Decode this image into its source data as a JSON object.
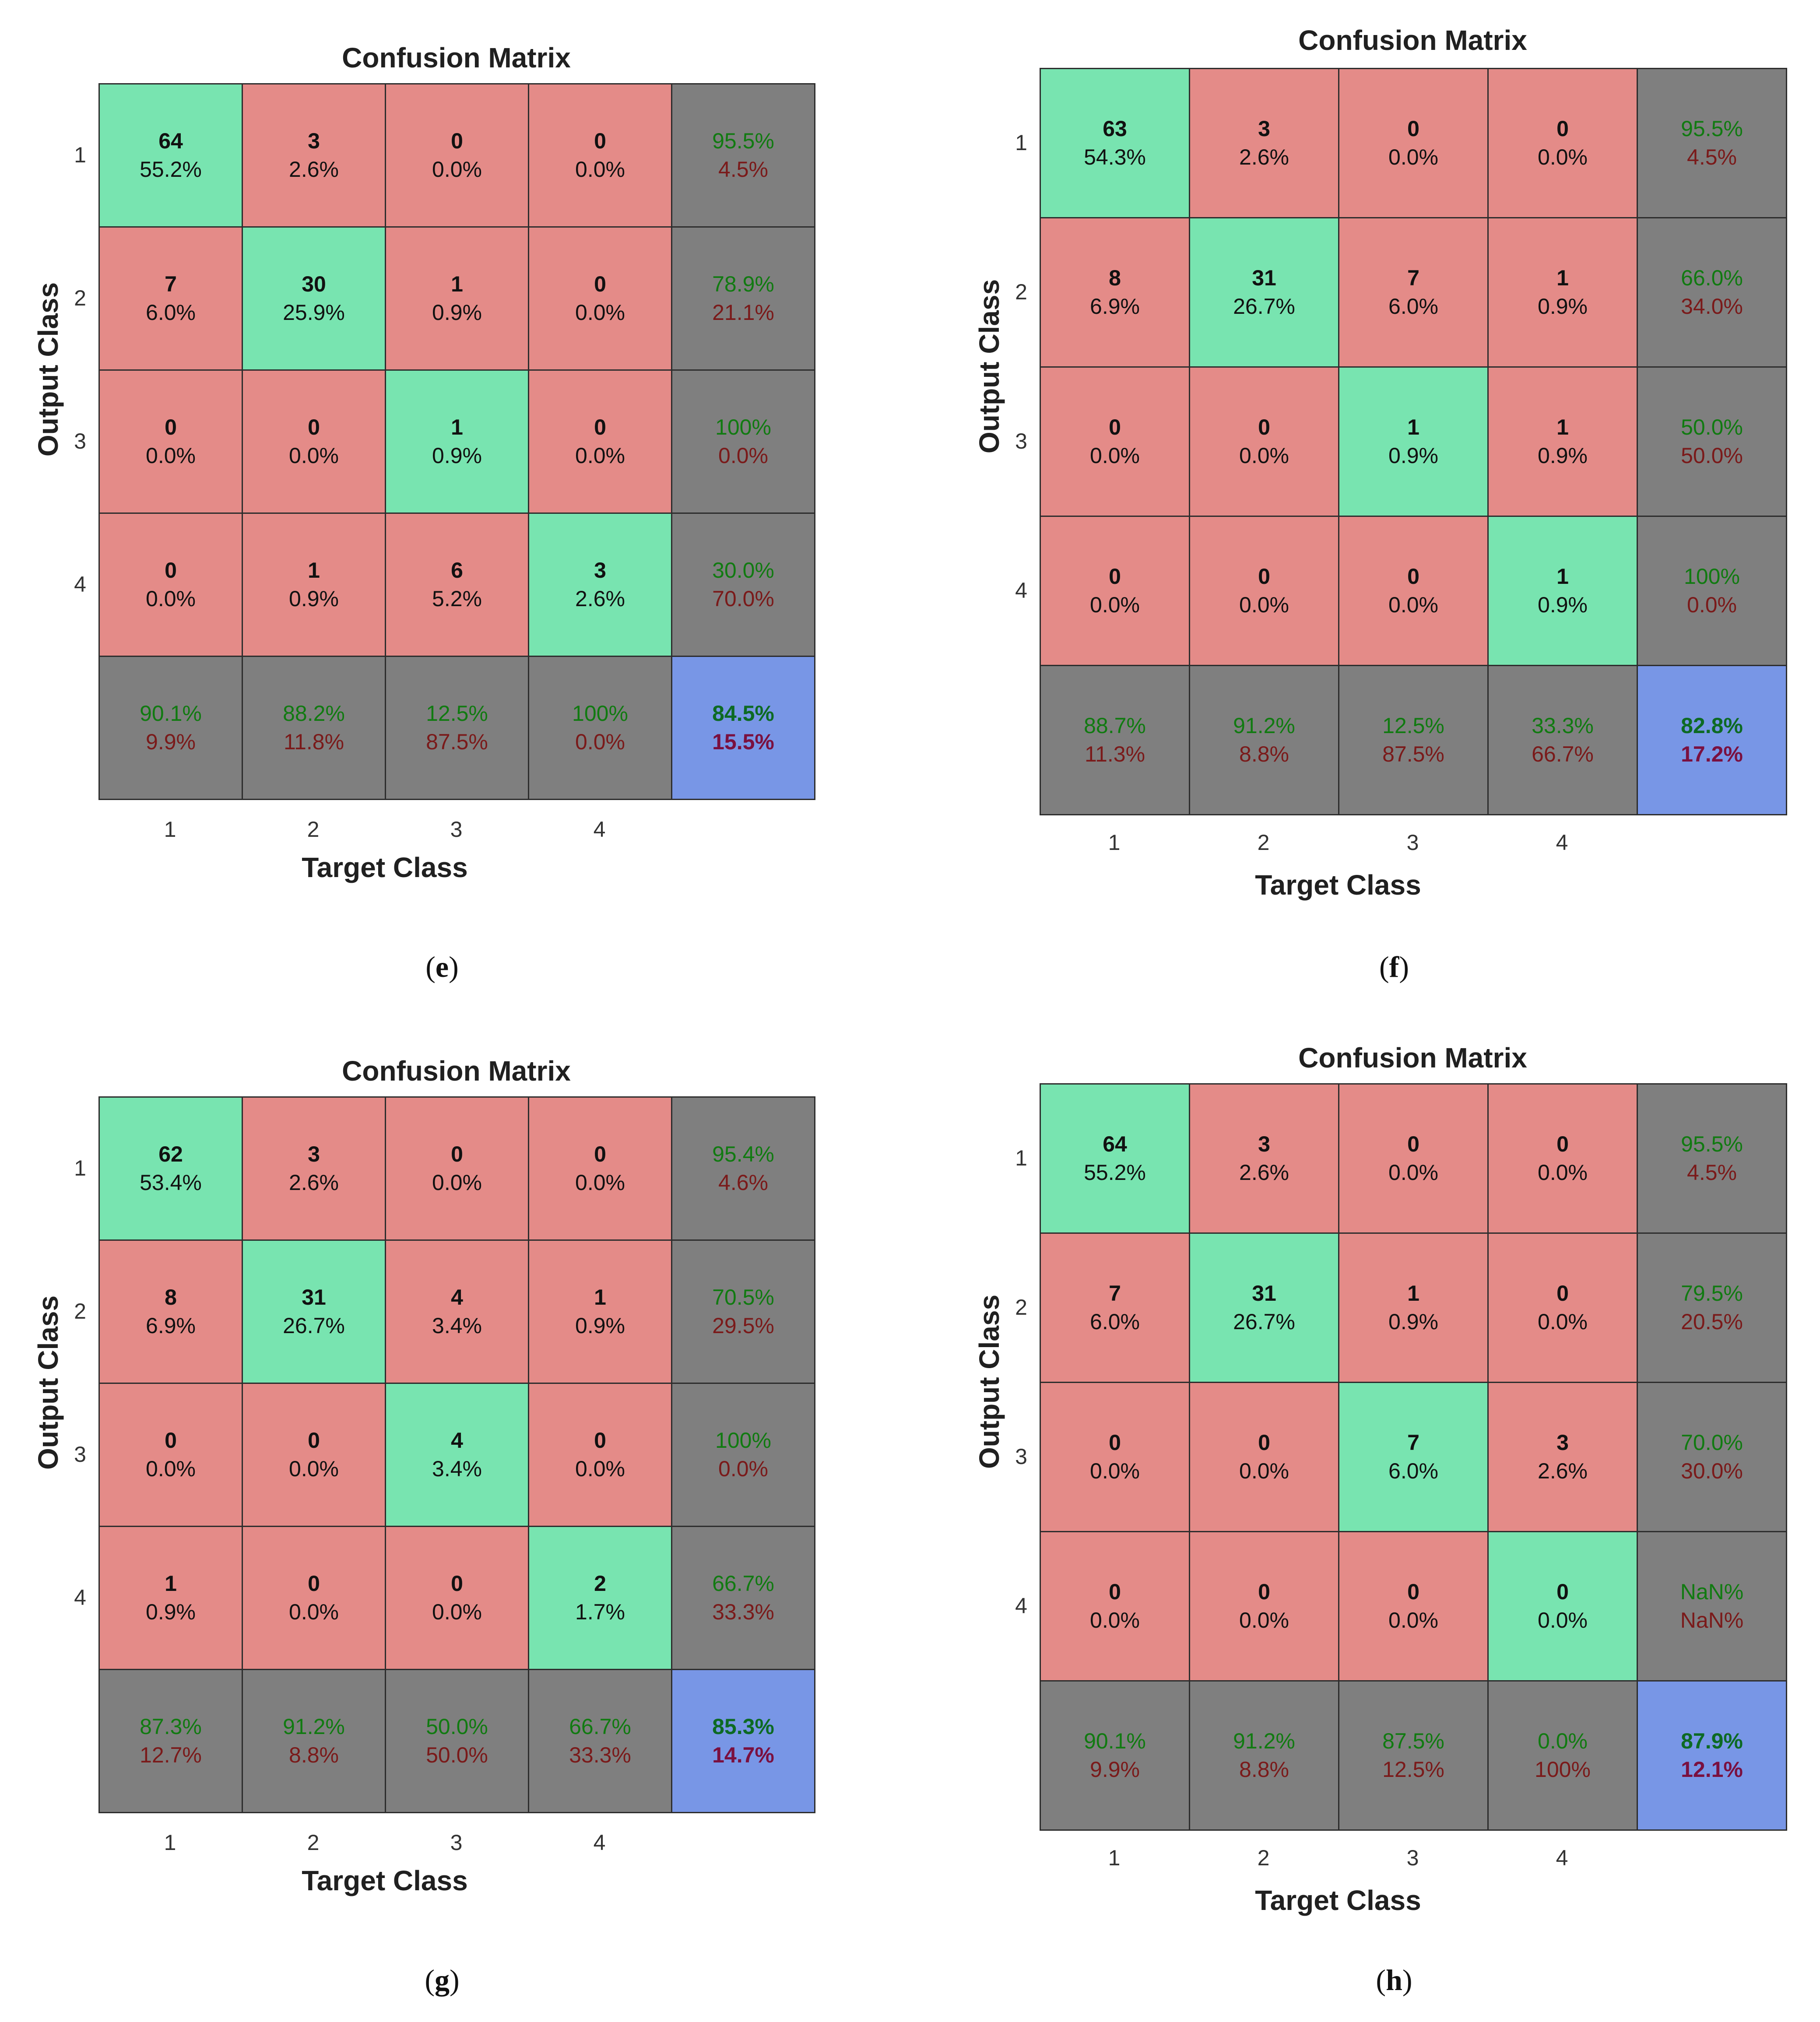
{
  "chart_data": [
    {
      "type": "table",
      "panel": "e",
      "title": "Confusion Matrix",
      "xlabel": "Target Class",
      "ylabel": "Output Class",
      "x_ticks": [
        "1",
        "2",
        "3",
        "4"
      ],
      "y_ticks": [
        "1",
        "2",
        "3",
        "4"
      ],
      "rows": [
        [
          {
            "count": "64",
            "pct": "55.2%"
          },
          {
            "count": "3",
            "pct": "2.6%"
          },
          {
            "count": "0",
            "pct": "0.0%"
          },
          {
            "count": "0",
            "pct": "0.0%"
          },
          {
            "good": "95.5%",
            "bad": "4.5%"
          }
        ],
        [
          {
            "count": "7",
            "pct": "6.0%"
          },
          {
            "count": "30",
            "pct": "25.9%"
          },
          {
            "count": "1",
            "pct": "0.9%"
          },
          {
            "count": "0",
            "pct": "0.0%"
          },
          {
            "good": "78.9%",
            "bad": "21.1%"
          }
        ],
        [
          {
            "count": "0",
            "pct": "0.0%"
          },
          {
            "count": "0",
            "pct": "0.0%"
          },
          {
            "count": "1",
            "pct": "0.9%"
          },
          {
            "count": "0",
            "pct": "0.0%"
          },
          {
            "good": "100%",
            "bad": "0.0%"
          }
        ],
        [
          {
            "count": "0",
            "pct": "0.0%"
          },
          {
            "count": "1",
            "pct": "0.9%"
          },
          {
            "count": "6",
            "pct": "5.2%"
          },
          {
            "count": "3",
            "pct": "2.6%"
          },
          {
            "good": "30.0%",
            "bad": "70.0%"
          }
        ]
      ],
      "column_summary": [
        {
          "good": "90.1%",
          "bad": "9.9%"
        },
        {
          "good": "88.2%",
          "bad": "11.8%"
        },
        {
          "good": "12.5%",
          "bad": "87.5%"
        },
        {
          "good": "100%",
          "bad": "0.0%"
        }
      ],
      "overall": {
        "good": "84.5%",
        "bad": "15.5%"
      }
    },
    {
      "type": "table",
      "panel": "f",
      "title": "Confusion Matrix",
      "xlabel": "Target Class",
      "ylabel": "Output Class",
      "x_ticks": [
        "1",
        "2",
        "3",
        "4"
      ],
      "y_ticks": [
        "1",
        "2",
        "3",
        "4"
      ],
      "rows": [
        [
          {
            "count": "63",
            "pct": "54.3%"
          },
          {
            "count": "3",
            "pct": "2.6%"
          },
          {
            "count": "0",
            "pct": "0.0%"
          },
          {
            "count": "0",
            "pct": "0.0%"
          },
          {
            "good": "95.5%",
            "bad": "4.5%"
          }
        ],
        [
          {
            "count": "8",
            "pct": "6.9%"
          },
          {
            "count": "31",
            "pct": "26.7%"
          },
          {
            "count": "7",
            "pct": "6.0%"
          },
          {
            "count": "1",
            "pct": "0.9%"
          },
          {
            "good": "66.0%",
            "bad": "34.0%"
          }
        ],
        [
          {
            "count": "0",
            "pct": "0.0%"
          },
          {
            "count": "0",
            "pct": "0.0%"
          },
          {
            "count": "1",
            "pct": "0.9%"
          },
          {
            "count": "1",
            "pct": "0.9%"
          },
          {
            "good": "50.0%",
            "bad": "50.0%"
          }
        ],
        [
          {
            "count": "0",
            "pct": "0.0%"
          },
          {
            "count": "0",
            "pct": "0.0%"
          },
          {
            "count": "0",
            "pct": "0.0%"
          },
          {
            "count": "1",
            "pct": "0.9%"
          },
          {
            "good": "100%",
            "bad": "0.0%"
          }
        ]
      ],
      "column_summary": [
        {
          "good": "88.7%",
          "bad": "11.3%"
        },
        {
          "good": "91.2%",
          "bad": "8.8%"
        },
        {
          "good": "12.5%",
          "bad": "87.5%"
        },
        {
          "good": "33.3%",
          "bad": "66.7%"
        }
      ],
      "overall": {
        "good": "82.8%",
        "bad": "17.2%"
      }
    },
    {
      "type": "table",
      "panel": "g",
      "title": "Confusion Matrix",
      "xlabel": "Target Class",
      "ylabel": "Output Class",
      "x_ticks": [
        "1",
        "2",
        "3",
        "4"
      ],
      "y_ticks": [
        "1",
        "2",
        "3",
        "4"
      ],
      "rows": [
        [
          {
            "count": "62",
            "pct": "53.4%"
          },
          {
            "count": "3",
            "pct": "2.6%"
          },
          {
            "count": "0",
            "pct": "0.0%"
          },
          {
            "count": "0",
            "pct": "0.0%"
          },
          {
            "good": "95.4%",
            "bad": "4.6%"
          }
        ],
        [
          {
            "count": "8",
            "pct": "6.9%"
          },
          {
            "count": "31",
            "pct": "26.7%"
          },
          {
            "count": "4",
            "pct": "3.4%"
          },
          {
            "count": "1",
            "pct": "0.9%"
          },
          {
            "good": "70.5%",
            "bad": "29.5%"
          }
        ],
        [
          {
            "count": "0",
            "pct": "0.0%"
          },
          {
            "count": "0",
            "pct": "0.0%"
          },
          {
            "count": "4",
            "pct": "3.4%"
          },
          {
            "count": "0",
            "pct": "0.0%"
          },
          {
            "good": "100%",
            "bad": "0.0%"
          }
        ],
        [
          {
            "count": "1",
            "pct": "0.9%"
          },
          {
            "count": "0",
            "pct": "0.0%"
          },
          {
            "count": "0",
            "pct": "0.0%"
          },
          {
            "count": "2",
            "pct": "1.7%"
          },
          {
            "good": "66.7%",
            "bad": "33.3%"
          }
        ]
      ],
      "column_summary": [
        {
          "good": "87.3%",
          "bad": "12.7%"
        },
        {
          "good": "91.2%",
          "bad": "8.8%"
        },
        {
          "good": "50.0%",
          "bad": "50.0%"
        },
        {
          "good": "66.7%",
          "bad": "33.3%"
        }
      ],
      "overall": {
        "good": "85.3%",
        "bad": "14.7%"
      }
    },
    {
      "type": "table",
      "panel": "h",
      "title": "Confusion Matrix",
      "xlabel": "Target Class",
      "ylabel": "Output Class",
      "x_ticks": [
        "1",
        "2",
        "3",
        "4"
      ],
      "y_ticks": [
        "1",
        "2",
        "3",
        "4"
      ],
      "rows": [
        [
          {
            "count": "64",
            "pct": "55.2%"
          },
          {
            "count": "3",
            "pct": "2.6%"
          },
          {
            "count": "0",
            "pct": "0.0%"
          },
          {
            "count": "0",
            "pct": "0.0%"
          },
          {
            "good": "95.5%",
            "bad": "4.5%"
          }
        ],
        [
          {
            "count": "7",
            "pct": "6.0%"
          },
          {
            "count": "31",
            "pct": "26.7%"
          },
          {
            "count": "1",
            "pct": "0.9%"
          },
          {
            "count": "0",
            "pct": "0.0%"
          },
          {
            "good": "79.5%",
            "bad": "20.5%"
          }
        ],
        [
          {
            "count": "0",
            "pct": "0.0%"
          },
          {
            "count": "0",
            "pct": "0.0%"
          },
          {
            "count": "7",
            "pct": "6.0%"
          },
          {
            "count": "3",
            "pct": "2.6%"
          },
          {
            "good": "70.0%",
            "bad": "30.0%"
          }
        ],
        [
          {
            "count": "0",
            "pct": "0.0%"
          },
          {
            "count": "0",
            "pct": "0.0%"
          },
          {
            "count": "0",
            "pct": "0.0%"
          },
          {
            "count": "0",
            "pct": "0.0%"
          },
          {
            "good": "NaN%",
            "bad": "NaN%"
          }
        ]
      ],
      "column_summary": [
        {
          "good": "90.1%",
          "bad": "9.9%"
        },
        {
          "good": "91.2%",
          "bad": "8.8%"
        },
        {
          "good": "87.5%",
          "bad": "12.5%"
        },
        {
          "good": "0.0%",
          "bad": "100%"
        }
      ],
      "overall": {
        "good": "87.9%",
        "bad": "12.1%"
      }
    }
  ],
  "colors": {
    "diagonal": "#78e4b0",
    "off_diagonal": "#e48b88",
    "summary": "#7f7f7f",
    "overall": "#7896e6",
    "good_text": "#117a11",
    "bad_text": "#7a1a1a"
  }
}
